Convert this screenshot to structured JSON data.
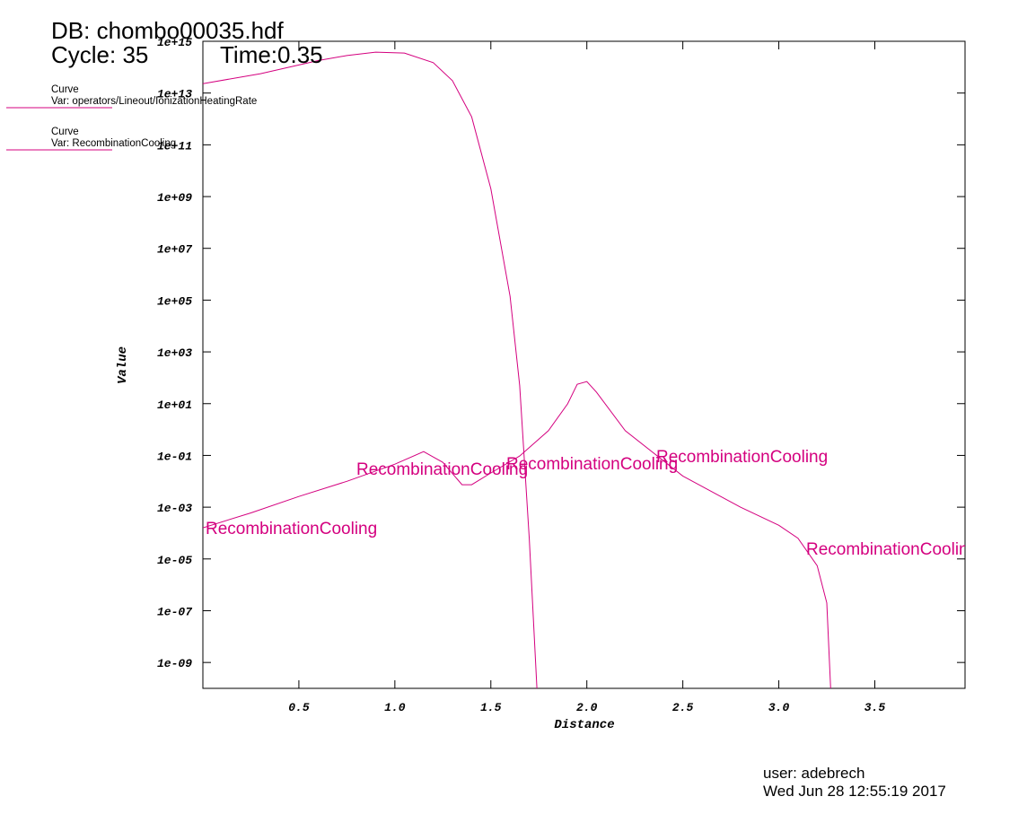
{
  "chart_data": {
    "type": "line",
    "db": "DB: chombo00035.hdf",
    "cycle": "Cycle: 35",
    "time": "Time:0.35",
    "xlabel": "Distance",
    "ylabel": "Value",
    "user": "user: adebrech",
    "date": "Wed Jun 28 12:55:19 2017",
    "legend_heading": "Curve",
    "ylog": true,
    "xlim": [
      0,
      3.97
    ],
    "ylim": [
      1e-10,
      1000000000000000.0
    ],
    "xticks": [
      0.5,
      {
        "value": 1,
        "label": "1.0"
      },
      1.5,
      {
        "value": 2,
        "label": "2.0"
      },
      2.5,
      {
        "value": 3,
        "label": "3.0"
      },
      3.5
    ],
    "yticks": [
      {
        "value": 1000000000000000.0,
        "label": "1e+15"
      },
      {
        "value": 10000000000000.0,
        "label": "1e+13"
      },
      {
        "value": 100000000000.0,
        "label": "1e+11"
      },
      {
        "value": 1000000000.0,
        "label": "1e+09"
      },
      {
        "value": 10000000.0,
        "label": "1e+07"
      },
      {
        "value": 100000.0,
        "label": "1e+05"
      },
      {
        "value": 1000.0,
        "label": "1e+03"
      },
      {
        "value": 10,
        "label": "1e+01"
      },
      {
        "value": 0.1,
        "label": "1e-01"
      },
      {
        "value": 0.001,
        "label": "1e-03"
      },
      {
        "value": 1e-05,
        "label": "1e-05"
      },
      {
        "value": 1e-07,
        "label": "1e-07"
      },
      {
        "value": 1e-09,
        "label": "1e-09"
      }
    ],
    "series": [
      {
        "name": "Var: operators/Lineout/IonizationHeatingRate",
        "color": "#d4007f",
        "x": [
          0,
          0.3,
          0.6,
          0.75,
          0.9,
          1.05,
          1.2,
          1.3,
          1.4,
          1.5,
          1.6,
          1.65,
          1.7,
          1.74
        ],
        "values": [
          23000000000000.0,
          56000000000000.0,
          180000000000000.0,
          280000000000000.0,
          380000000000000.0,
          350000000000000.0,
          150000000000000.0,
          30000000000000.0,
          1200000000000.0,
          2000000000.0,
          140000.0,
          50,
          6e-05,
          1e-10
        ]
      },
      {
        "name": "Var: RecombinationCooling",
        "color": "#d4007f",
        "curve_label": "RecombinationCooling",
        "x": [
          0,
          0.25,
          0.5,
          0.75,
          1.0,
          1.15,
          1.25,
          1.35,
          1.4,
          1.5,
          1.65,
          1.8,
          1.9,
          1.95,
          2.0,
          2.05,
          2.2,
          2.5,
          2.8,
          3.0,
          3.1,
          3.2,
          3.25,
          3.27
        ],
        "values": [
          0.00016,
          0.0006,
          0.0026,
          0.01,
          0.046,
          0.14,
          0.054,
          0.0074,
          0.0074,
          0.021,
          0.095,
          0.9,
          9.8,
          56,
          71,
          28,
          0.9,
          0.016,
          0.001,
          0.0002,
          6.3e-05,
          5.5e-06,
          2e-07,
          1e-10
        ]
      }
    ]
  }
}
